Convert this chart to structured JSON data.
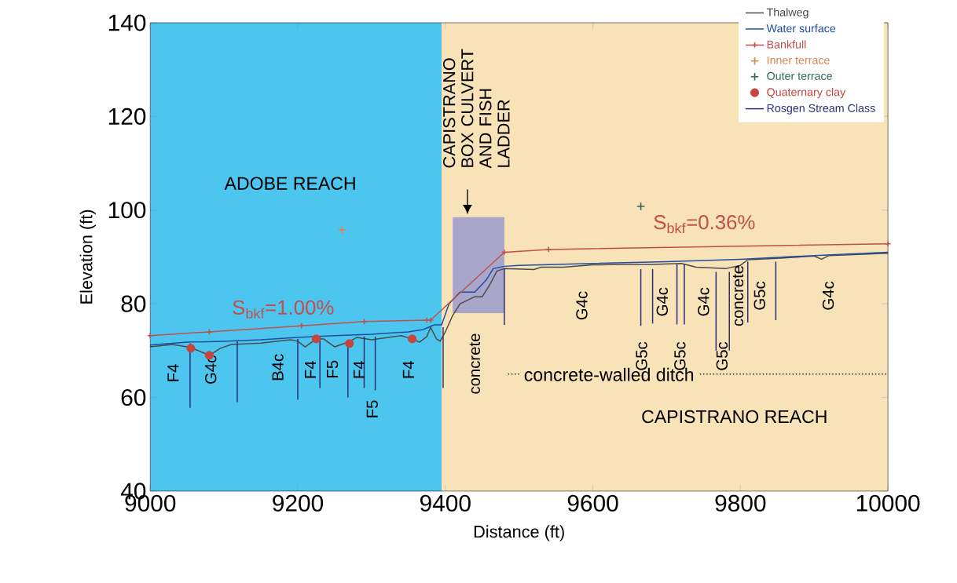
{
  "chart_data": {
    "type": "line",
    "xlabel": "Distance (ft)",
    "ylabel": "Elevation (ft)",
    "xlim": [
      9000,
      10000
    ],
    "ylim": [
      40,
      140
    ],
    "xticks": [
      9000,
      9200,
      9400,
      9600,
      9800,
      10000
    ],
    "yticks": [
      40,
      60,
      80,
      100,
      120,
      140
    ],
    "legend": "top right",
    "marker": "none",
    "series": [
      {
        "name": "Thalweg",
        "color": "#4a4a4a",
        "x": [
          9000,
          9030,
          9050,
          9065,
          9080,
          9095,
          9110,
          9150,
          9190,
          9200,
          9210,
          9225,
          9235,
          9250,
          9268,
          9280,
          9300,
          9340,
          9355,
          9365,
          9375,
          9380,
          9388,
          9393,
          9400,
          9410,
          9420,
          9440,
          9450,
          9460,
          9470,
          9480,
          9520,
          9530,
          9560,
          9600,
          9640,
          9680,
          9700,
          9720,
          9740,
          9780,
          9800,
          9810,
          9850,
          9900,
          9910,
          9920,
          10000
        ],
        "values": [
          70.8,
          71.3,
          70.8,
          70,
          69,
          70.5,
          71.3,
          71.6,
          72.3,
          72,
          70.8,
          72.5,
          72.5,
          70.8,
          71.8,
          72.8,
          72.3,
          73.2,
          72.5,
          71.8,
          73,
          75,
          72.5,
          72,
          74,
          77.5,
          80,
          81.5,
          81.5,
          84,
          87,
          87.5,
          87.3,
          87.8,
          87.8,
          88.3,
          88.4,
          88.4,
          88.5,
          88.6,
          87.8,
          87.5,
          88.2,
          89.4,
          89.7,
          90.2,
          89.5,
          90.3,
          90.8
        ]
      },
      {
        "name": "Water surface",
        "color": "#1f4ea0",
        "x": [
          9000,
          9050,
          9100,
          9150,
          9200,
          9250,
          9300,
          9350,
          9370,
          9385,
          9395,
          9405,
          9420,
          9440,
          9455,
          9465,
          9480,
          9500,
          9600,
          9700,
          9800,
          9900,
          10000
        ],
        "values": [
          71.2,
          71.8,
          72,
          72.3,
          72.8,
          73.2,
          73.5,
          74,
          74.5,
          75.5,
          75.5,
          80,
          82.5,
          82.5,
          85,
          87.5,
          88,
          88.2,
          88.6,
          89,
          89.5,
          90.3,
          91
        ]
      },
      {
        "name": "Bankfull",
        "color": "#c0504d",
        "marker": "cross",
        "x": [
          9000,
          9080,
          9205,
          9290,
          9375,
          9380,
          9480,
          9540,
          10000
        ],
        "values": [
          73.2,
          74,
          75.3,
          76.2,
          76.5,
          76.5,
          91,
          91.6,
          92.8
        ]
      },
      {
        "name": "Inner terrace",
        "type": "scatter",
        "color": "#d9844f",
        "marker": "cross",
        "x": [
          9260
        ],
        "values": [
          95.8
        ]
      },
      {
        "name": "Outer terrace",
        "type": "scatter",
        "color": "#2e6b4f",
        "marker": "cross",
        "x": [
          9665
        ],
        "values": [
          100.8
        ]
      },
      {
        "name": "Quaternary clay",
        "type": "scatter",
        "color": "#c8453c",
        "marker": "circle",
        "x": [
          9055,
          9080,
          9225,
          9270,
          9355
        ],
        "values": [
          70.5,
          69,
          72.5,
          71.5,
          72.5
        ]
      },
      {
        "name": "Rosgen Stream Class",
        "color": "#2b2f7a",
        "x": [
          9054,
          9054,
          null,
          9118,
          9118,
          null,
          9200,
          9200,
          null,
          9230,
          9230,
          null,
          9268,
          9268,
          null,
          9290,
          9290,
          null,
          9305,
          9305,
          null,
          9397,
          9397,
          null,
          9480,
          9480,
          null,
          9665,
          9665,
          null,
          9681,
          9681,
          null,
          9714,
          9714,
          null,
          9724,
          9724,
          null,
          9767,
          9767,
          null,
          9785,
          9785,
          null,
          9810,
          9810,
          null,
          9848,
          9848
        ],
        "values": [
          71.5,
          57.8,
          null,
          72,
          59,
          null,
          72.5,
          59.5,
          null,
          73,
          62,
          null,
          72,
          60,
          null,
          73,
          62,
          null,
          73,
          61.5,
          null,
          75,
          62,
          null,
          87.5,
          75.5,
          null,
          87.4,
          75.3,
          null,
          87.4,
          75.8,
          null,
          88.5,
          75.6,
          null,
          88.5,
          75.6,
          null,
          86.8,
          70,
          null,
          86.8,
          70,
          null,
          89,
          76,
          null,
          89,
          76.5
        ]
      },
      {
        "color": "#222222",
        "line_style": "dotted",
        "x": [
          9485,
          10000
        ],
        "values": [
          65,
          65
        ]
      }
    ],
    "bands": [
      {
        "axis": "x",
        "from": 9000,
        "to": 9395,
        "color": "#4cc6ee"
      },
      {
        "axis": "x",
        "from": 9395,
        "to": 10000,
        "color": "#f8e2b8"
      }
    ],
    "annotations": [
      "ADOBE REACH",
      "CAPISTRANO REACH",
      "concrete-walled ditch",
      "S$_{bkf}$=1.00%",
      "S$_{bkf}$=0.36%",
      "CAPISTRANO BOX CULVERT AND FISH LADDER",
      "F4",
      "G4c",
      "B4c",
      "F4",
      "F5",
      "F4",
      "F5",
      "F4",
      "concrete",
      "G4c",
      "G5c",
      "G4c",
      "G5c",
      "G4c",
      "G5c",
      "concrete",
      "G5c",
      "G4c"
    ]
  }
}
